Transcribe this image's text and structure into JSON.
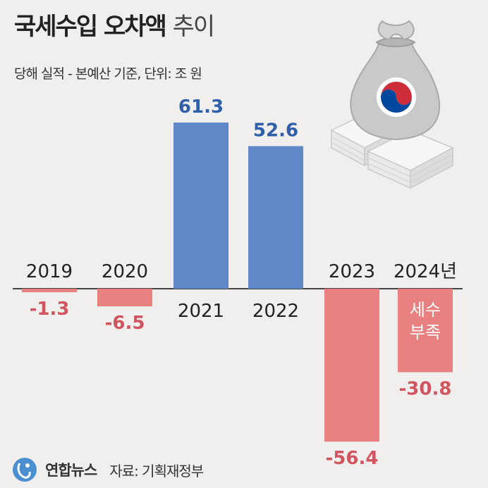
{
  "header": {
    "title_bold": "국세수입 오차액",
    "title_light": "추이",
    "subtitle": "당해 실적 - 본예산 기준, 단위: 조 원"
  },
  "footer": {
    "logo_text": "연합뉴스",
    "source": "자료: 기획재정부"
  },
  "colors": {
    "positive": "#6087c8",
    "negative": "#e88080",
    "positive_label": "#2f5fa8",
    "negative_label": "#d05560",
    "background": "#f0efed"
  },
  "chart_data": {
    "type": "bar",
    "categories": [
      "2019",
      "2020",
      "2021",
      "2022",
      "2023",
      "2024년"
    ],
    "values": [
      -1.3,
      -6.5,
      61.3,
      52.6,
      -56.4,
      -30.8
    ],
    "value_labels": [
      "-1.3",
      "-6.5",
      "61.3",
      "52.6",
      "-56.4",
      "-30.8"
    ],
    "annotation": {
      "category": "2024년",
      "text_line1": "세수",
      "text_line2": "부족"
    },
    "ylim": [
      -70,
      70
    ]
  }
}
